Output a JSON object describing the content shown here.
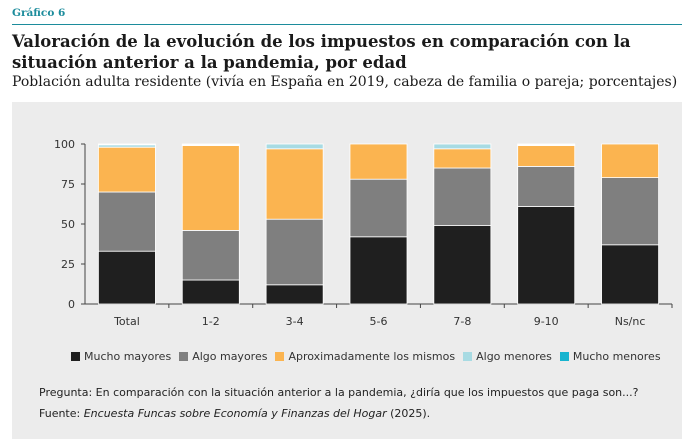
{
  "header": {
    "label": "Gráfico 6"
  },
  "title": "Valoración de la evolución de los impuestos en comparación con la situación anterior a la pandemia, por edad",
  "subtitle": "Población adulta residente (vivía en España en 2019, cabeza de familia o pareja; porcentajes)",
  "colors": {
    "accent": "#1c8c9c",
    "mucho_mayores": "#1f1f1f",
    "algo_mayores": "#7f7f7f",
    "aproximadamente": "#fbb450",
    "algo_menores": "#a8dbe3",
    "mucho_menores": "#17b4cf"
  },
  "chart_data": {
    "type": "bar",
    "stacked": true,
    "categories": [
      "Total",
      "1-2",
      "3-4",
      "5-6",
      "7-8",
      "9-10",
      "Ns/nc"
    ],
    "ylim": [
      0,
      100
    ],
    "yticks": [
      0,
      25,
      50,
      75,
      100
    ],
    "grid": false,
    "legend_position": "bottom",
    "series": [
      {
        "name": "Mucho mayores",
        "color": "#1f1f1f",
        "values": [
          33,
          15,
          12,
          42,
          49,
          61,
          37
        ]
      },
      {
        "name": "Algo mayores",
        "color": "#7f7f7f",
        "values": [
          37,
          31,
          41,
          36,
          36,
          25,
          42
        ]
      },
      {
        "name": "Aproximadamente los mismos",
        "color": "#fbb450",
        "values": [
          28,
          53,
          44,
          22,
          12,
          13,
          21
        ]
      },
      {
        "name": "Algo menores",
        "color": "#a8dbe3",
        "values": [
          1.5,
          0.5,
          3,
          0,
          3,
          0.5,
          0
        ]
      },
      {
        "name": "Mucho menores",
        "color": "#17b4cf",
        "values": [
          0.5,
          0.5,
          0,
          0,
          0,
          0.5,
          0
        ]
      }
    ]
  },
  "note": "Pregunta: En comparación con la situación anterior a la pandemia, ¿diría que los impuestos que paga son...?",
  "source": {
    "prefix": "Fuente: ",
    "italic": "Encuesta Funcas sobre Economía y Finanzas del Hogar",
    "suffix": " (2025)."
  }
}
